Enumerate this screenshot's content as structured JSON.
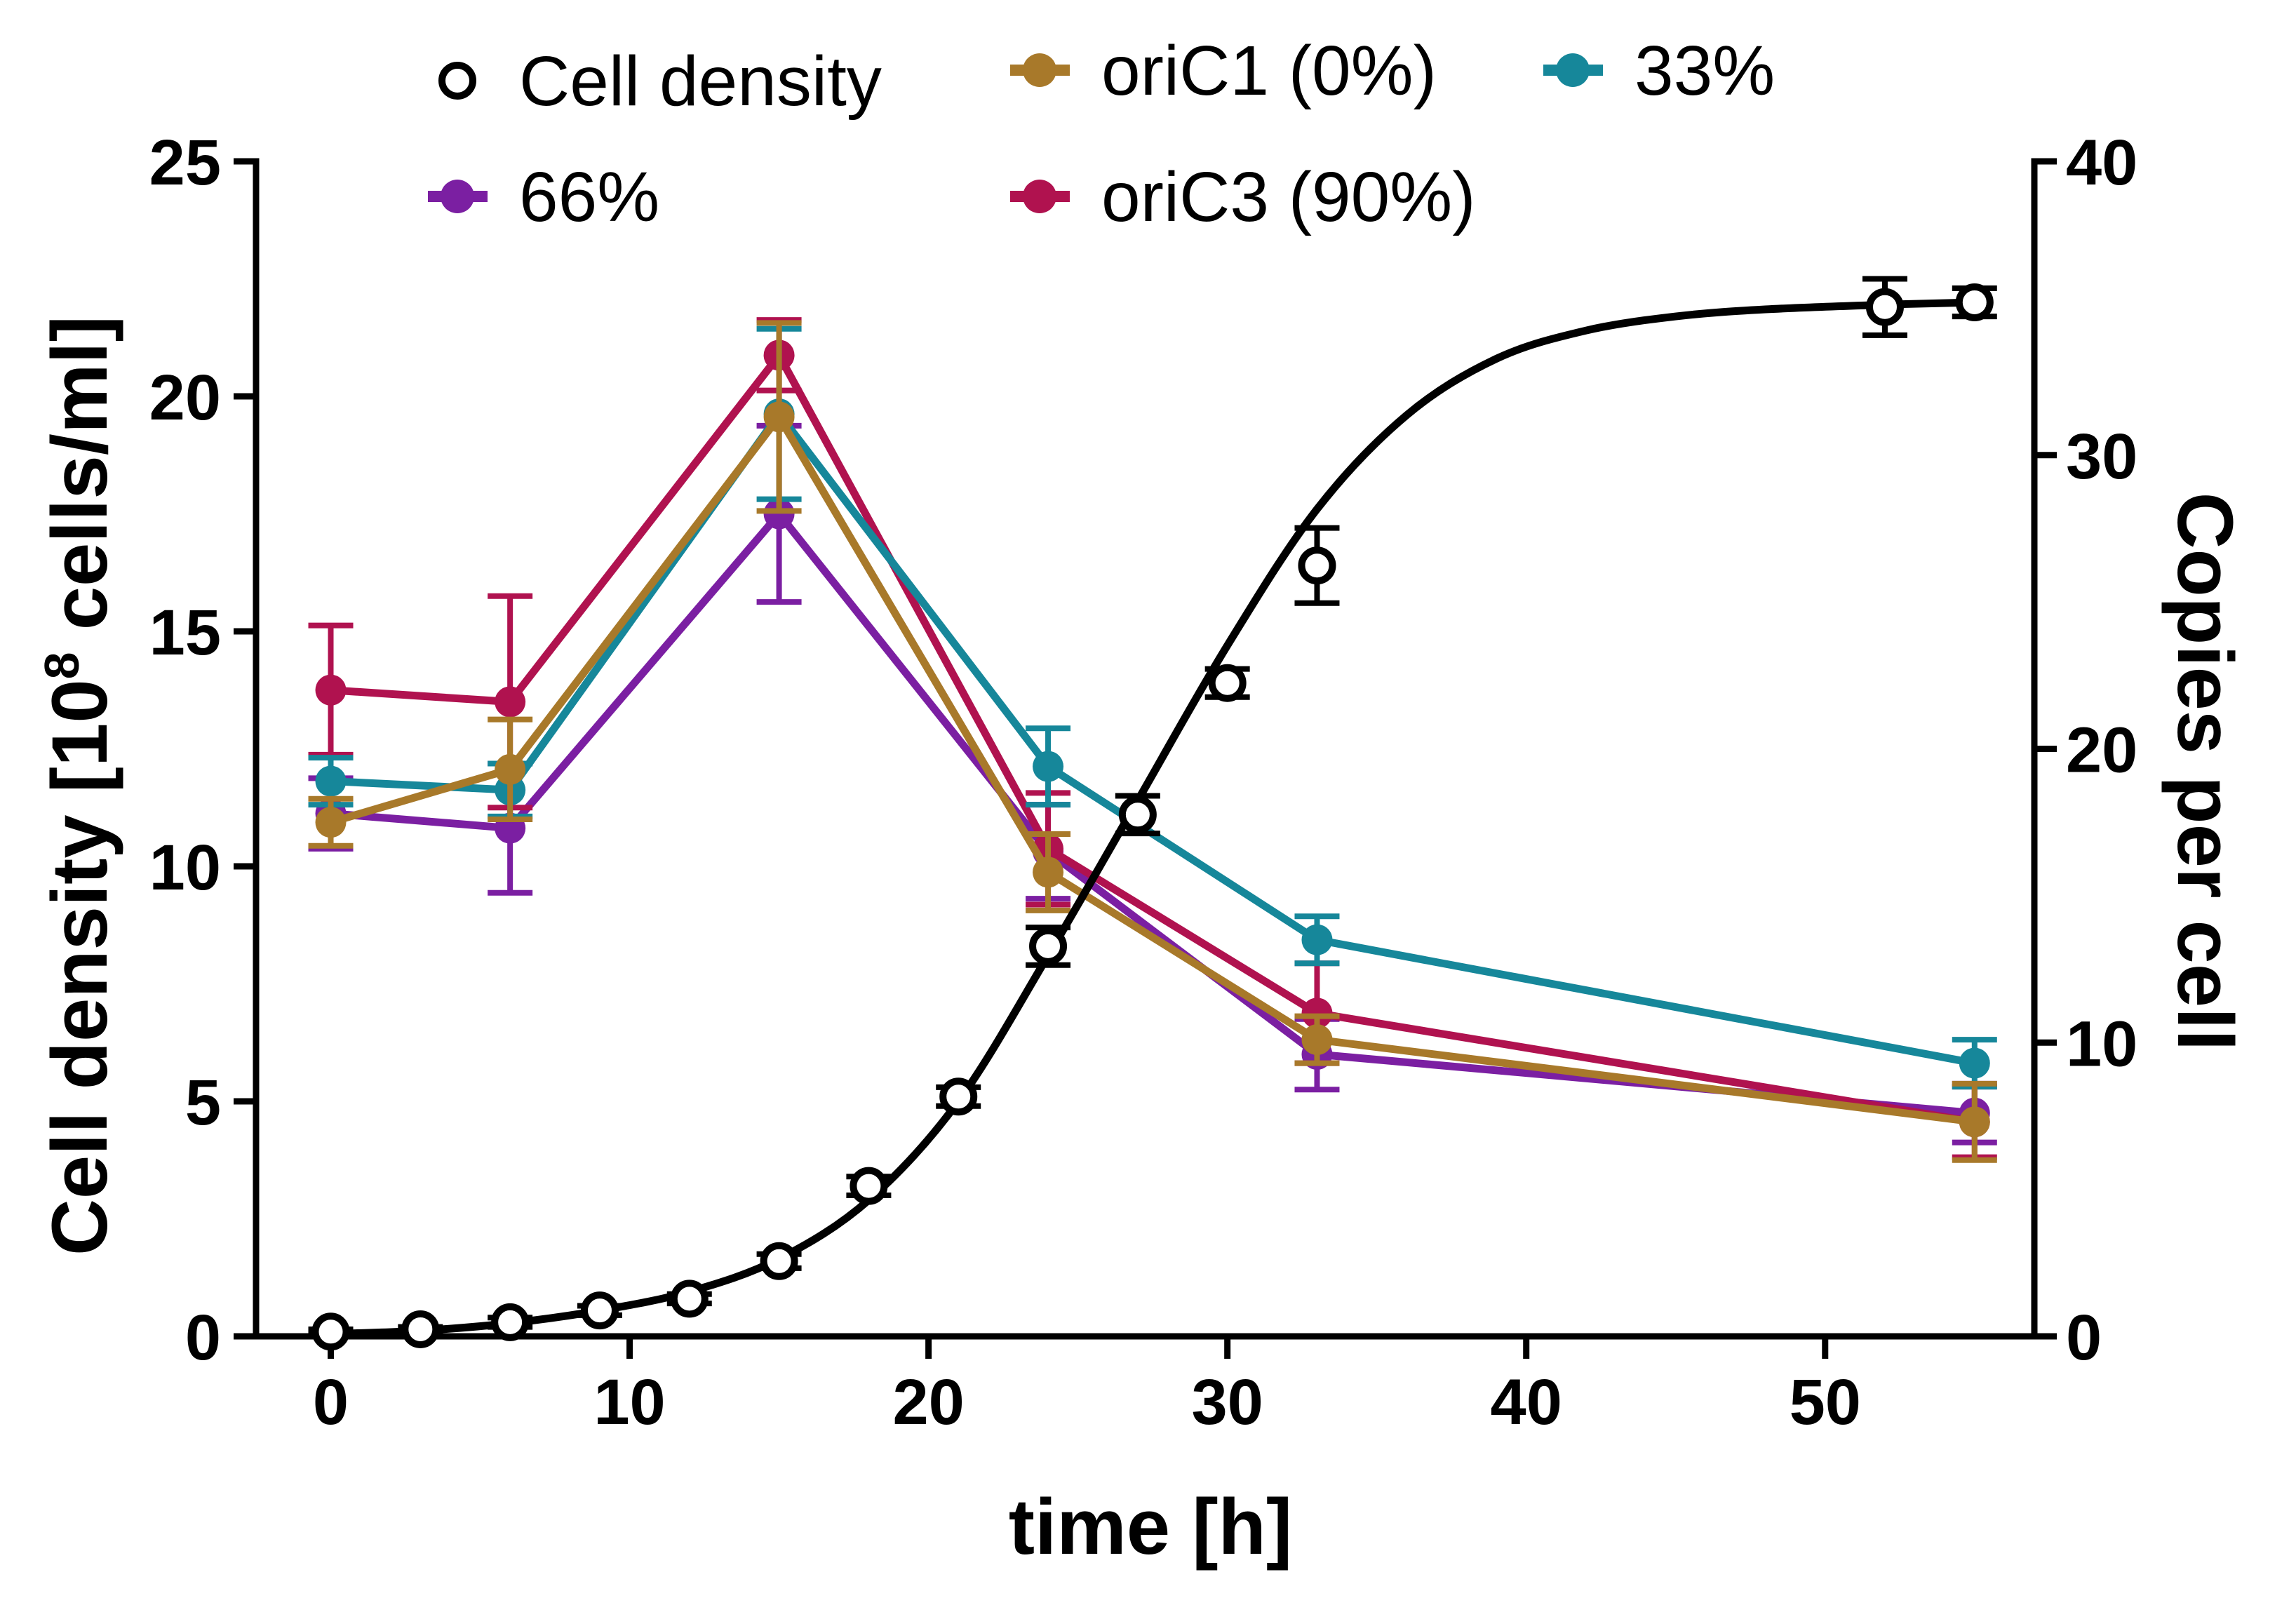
{
  "chart_data": {
    "type": "line",
    "xlabel": "time [h]",
    "ylabel_left": "Cell density [10",
    "ylabel_left_sup": "8",
    "ylabel_left_tail": " cells/ml]",
    "ylabel_right": "Copies per cell",
    "xlim": [
      -2.5,
      57
    ],
    "ylim_left": [
      0,
      25
    ],
    "ylim_right": [
      0,
      40
    ],
    "xticks": [
      0,
      10,
      20,
      30,
      40,
      50
    ],
    "yticks_left": [
      0,
      5,
      10,
      15,
      20,
      25
    ],
    "yticks_right": [
      0,
      10,
      20,
      30,
      40
    ],
    "cell_density": {
      "name": "Cell density",
      "color": "#000000",
      "axis": "left",
      "x": [
        0,
        3,
        6,
        9,
        12,
        15,
        18,
        21,
        24,
        27,
        30,
        33,
        52,
        55
      ],
      "y": [
        0.1,
        0.15,
        0.3,
        0.55,
        0.8,
        1.6,
        3.2,
        5.1,
        8.3,
        11.1,
        13.9,
        16.4,
        21.9,
        22.0
      ],
      "err": [
        0.05,
        0.05,
        0.1,
        0.1,
        0.1,
        0.15,
        0.2,
        0.2,
        0.4,
        0.4,
        0.3,
        0.8,
        0.6,
        0.3
      ],
      "fit_x": [
        0,
        3,
        6,
        9,
        12,
        15,
        18,
        21,
        24,
        27,
        30,
        33,
        36,
        39,
        42,
        45,
        48,
        52,
        55
      ],
      "fit_y": [
        0.05,
        0.12,
        0.28,
        0.55,
        0.95,
        1.65,
        2.9,
        5.0,
        8.1,
        11.4,
        14.7,
        17.6,
        19.6,
        20.8,
        21.4,
        21.7,
        21.85,
        21.95,
        22.0
      ]
    },
    "series": [
      {
        "name": "66%",
        "color": "#7b1fa2",
        "x": [
          0,
          6,
          15,
          24,
          33,
          55
        ],
        "y": [
          17.8,
          17.3,
          28.0,
          16.5,
          9.6,
          7.6
        ],
        "err": [
          1.2,
          2.2,
          3.0,
          1.6,
          1.2,
          1.0
        ]
      },
      {
        "name": "oriC3 (90%)",
        "color": "#b0124f",
        "x": [
          0,
          6,
          15,
          24,
          33,
          55
        ],
        "y": [
          22.0,
          21.6,
          33.4,
          16.6,
          11.0,
          7.3
        ],
        "err": [
          2.2,
          3.6,
          1.2,
          1.9,
          1.7,
          1.2
        ]
      },
      {
        "name": "33%",
        "color": "#16879a",
        "x": [
          0,
          6,
          15,
          24,
          33,
          55
        ],
        "y": [
          18.9,
          18.6,
          31.4,
          19.4,
          13.5,
          9.3
        ],
        "err": [
          0.8,
          0.9,
          2.9,
          1.3,
          0.8,
          0.8
        ]
      },
      {
        "name": "oriC1 (0%)",
        "color": "#a8792a",
        "x": [
          0,
          6,
          15,
          24,
          33,
          55
        ],
        "y": [
          17.5,
          19.3,
          31.3,
          15.8,
          10.1,
          7.3
        ],
        "err": [
          0.8,
          1.7,
          3.2,
          1.3,
          0.8,
          1.3
        ]
      }
    ],
    "legend": {
      "placement": "top",
      "entries": [
        "Cell density",
        "oriC1 (0%)",
        "33%",
        "66%",
        "oriC3 (90%)"
      ]
    }
  }
}
